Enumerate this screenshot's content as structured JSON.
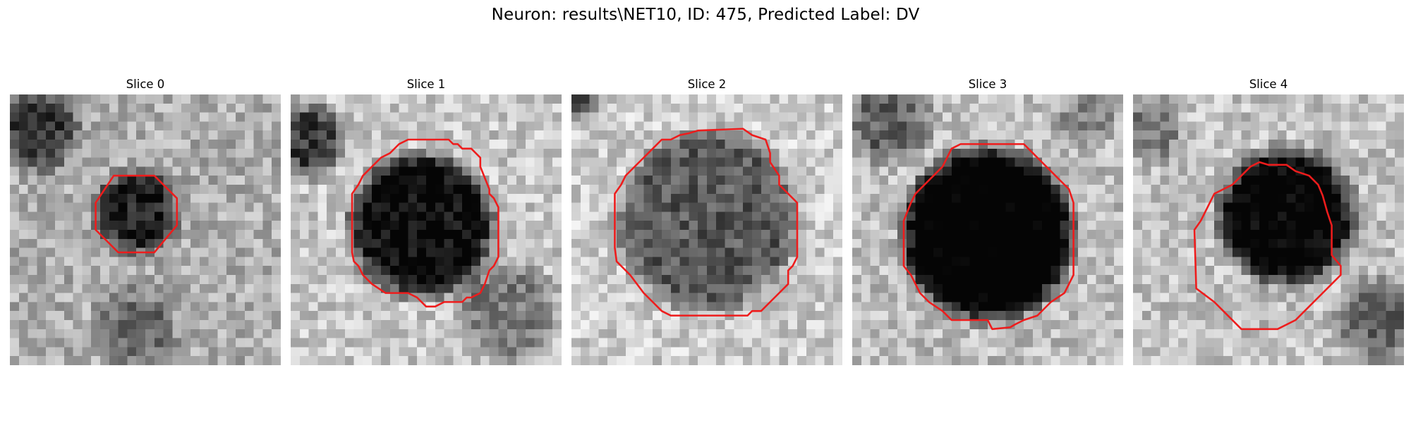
{
  "figure": {
    "title": "Neuron: results\\NET10, ID: 475, Predicted Label: DV"
  },
  "panels": [
    {
      "label": "Slice 0"
    },
    {
      "label": "Slice 1"
    },
    {
      "label": "Slice 2"
    },
    {
      "label": "Slice 3"
    },
    {
      "label": "Slice 4"
    }
  ],
  "colors": {
    "contour": "#ee1c1c",
    "background": "#ffffff",
    "image_colormap": "grayscale"
  }
}
